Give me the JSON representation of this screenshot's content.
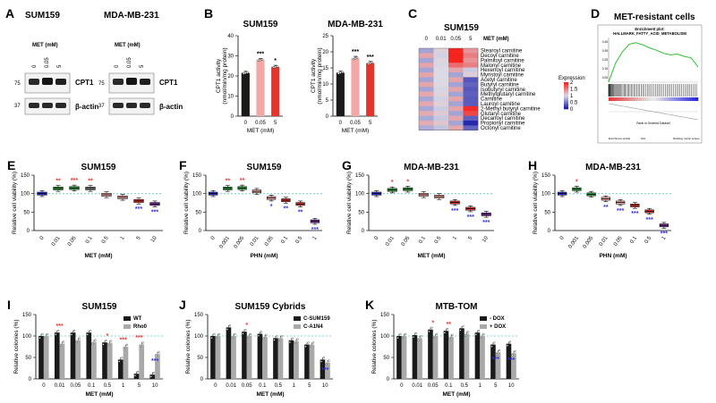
{
  "colors": {
    "black": "#1a1a1a",
    "red": "#e8332a",
    "pink": "#f4a8a5",
    "green": "#2f9e3f",
    "purple": "#7e2fa3",
    "blue": "#2a2fd6",
    "cyan": "#5fc8c8",
    "gray": "#a9a9a9",
    "lightgray": "#d6d6d6"
  },
  "panelA": {
    "letter": "A",
    "blots": [
      {
        "title": "SUM159",
        "treat": "MET (mM)",
        "lanes": [
          "0",
          "0.05",
          "5"
        ],
        "bands": [
          "CPT1",
          "β-actin"
        ],
        "mw": [
          "75",
          "37"
        ]
      },
      {
        "title": "MDA-MB-231",
        "treat": "MET (mM)",
        "lanes": [
          "0",
          "0.05",
          "5"
        ],
        "bands": [
          "CPT1",
          "β-actin"
        ],
        "mw": [
          "75",
          "37"
        ]
      }
    ]
  },
  "panelB": {
    "letter": "B",
    "ylabel": "CPT1 activity (nmol/min/mg protein)",
    "xlabel": "MET (mM)"
  },
  "panelC": {
    "letter": "C",
    "title": "SUM159",
    "treat": "MET (mM)",
    "cols": [
      "0",
      "0.01",
      "0.05",
      "5"
    ],
    "legend_title": "Expression",
    "legend_ticks": [
      "2",
      "1.5",
      "1",
      "0.5",
      "0"
    ],
    "rows": [
      "Stearoyl carnitine",
      "Decoyl carnitine",
      "Palmitoyl carnitine",
      "Malonyl carnitine",
      "Hexenoyl carnitine",
      "Myristoyl carnitine",
      "Acetyl carnitine",
      "Butyryl carnitine",
      "Isobutyryl carnitine",
      "Methylglutaryl carnitine",
      "Carnitine",
      "Lauroyl carnitine",
      "2-Methyl butyryl carnitine",
      "Glutaryl carnitine",
      "Decanoyl carnitine",
      "Propionyl carnitine",
      "Octonyl carnitine"
    ]
  },
  "panelD": {
    "letter": "D",
    "title": "MET-resistant cells",
    "plot_title": "Enrichment plot:",
    "plot_subtitle": "HALLMARK_FATTY_ACID_METABOLISM",
    "xlabel": "Rank in Ordered Dataset",
    "legend": [
      "Enrichment profile",
      "Hits",
      "Ranking metric scores"
    ]
  },
  "chart_data": [
    {
      "id": "B1",
      "type": "bar",
      "title": "SUM159",
      "categories": [
        "0",
        "0.05",
        "5"
      ],
      "values": [
        21.5,
        28,
        24.5
      ],
      "errors": [
        0.8,
        0.7,
        0.8
      ],
      "stars": [
        "",
        "***",
        "*"
      ],
      "ylim": [
        0,
        40
      ],
      "yticks": [
        0,
        10,
        20,
        30,
        40
      ],
      "ylabel": "CPT1 activity (nmol/min/mg protein)",
      "xlabel": "MET (mM)"
    },
    {
      "id": "B2",
      "type": "bar",
      "title": "MDA-MB-231",
      "categories": [
        "0",
        "0.05",
        "5"
      ],
      "values": [
        13.5,
        18,
        16.5
      ],
      "errors": [
        0.5,
        0.6,
        0.5
      ],
      "stars": [
        "",
        "***",
        "***"
      ],
      "ylim": [
        0,
        25
      ],
      "yticks": [
        0,
        5,
        10,
        15,
        20,
        25
      ],
      "ylabel": "CPT1 activity (nmol/min/mg protein)",
      "xlabel": "MET (mM)"
    },
    {
      "id": "C",
      "type": "heatmap",
      "rows": 17,
      "columns": 4,
      "scale": [
        0,
        2
      ]
    },
    {
      "id": "D",
      "type": "line",
      "title": "HALLMARK_FATTY_ACID_METABOLISM",
      "y": [
        0,
        0.25,
        0.4,
        0.5,
        0.52,
        0.49,
        0.45,
        0.42,
        0.38,
        0.36,
        0.37,
        0.34,
        0.32,
        0.2
      ],
      "yticks": [
        "0.45",
        "0.35",
        "0.25",
        "0.15",
        "0.05"
      ]
    },
    {
      "id": "E",
      "type": "box",
      "letter": "E",
      "title": "SUM159",
      "categories": [
        "0",
        "0.01",
        "0.05",
        "0.1",
        "0.5",
        "1",
        "5",
        "10"
      ],
      "medians": [
        100,
        114,
        115,
        114,
        97,
        90,
        80,
        72
      ],
      "box_colors": [
        "#2a2fd6",
        "#2f9e3f",
        "#2f9e3f",
        "#888888",
        "#f4a8a5",
        "#f4a8a5",
        "#e8332a",
        "#7e2fa3"
      ],
      "stars": [
        "",
        "**",
        "***",
        "**",
        "",
        "",
        "***",
        "***"
      ],
      "star_colors": [
        "",
        "red",
        "red",
        "red",
        "",
        "",
        "blue",
        "blue"
      ],
      "ylabel": "Relative cell viability (%)",
      "xlabel": "MET (mM)",
      "ylim": [
        0,
        150
      ],
      "yticks": [
        0,
        50,
        100,
        150
      ],
      "ref": 100
    },
    {
      "id": "F",
      "type": "box",
      "letter": "F",
      "title": "SUM159",
      "categories": [
        "0",
        "0.001",
        "0.005",
        "0.01",
        "0.05",
        "0.1",
        "0.5",
        "1"
      ],
      "medians": [
        100,
        114,
        115,
        106,
        88,
        82,
        72,
        25
      ],
      "box_colors": [
        "#2a2fd6",
        "#2f9e3f",
        "#2f9e3f",
        "#f4a8a5",
        "#f4a8a5",
        "#e8332a",
        "#e8332a",
        "#7e2fa3"
      ],
      "stars": [
        "",
        "**",
        "**",
        "",
        "*",
        "**",
        "**",
        "***"
      ],
      "star_colors": [
        "",
        "red",
        "red",
        "",
        "blue",
        "blue",
        "blue",
        "blue"
      ],
      "ylabel": "Relative cell viability (%)",
      "xlabel": "PHN (mM)",
      "ylim": [
        0,
        150
      ],
      "yticks": [
        0,
        50,
        100,
        150
      ],
      "ref": 100
    },
    {
      "id": "G",
      "type": "box",
      "letter": "G",
      "title": "MDA-MB-231",
      "categories": [
        "0",
        "0.01",
        "0.05",
        "0.1",
        "0.5",
        "1",
        "5",
        "10"
      ],
      "medians": [
        100,
        110,
        112,
        97,
        92,
        76,
        59,
        44
      ],
      "box_colors": [
        "#2a2fd6",
        "#2f9e3f",
        "#2f9e3f",
        "#f4a8a5",
        "#f4a8a5",
        "#e8332a",
        "#e8332a",
        "#7e2fa3"
      ],
      "stars": [
        "",
        "*",
        "*",
        "",
        "",
        "***",
        "***",
        "***"
      ],
      "star_colors": [
        "",
        "red",
        "red",
        "",
        "",
        "blue",
        "blue",
        "blue"
      ],
      "ylabel": "Relative cell viability (%)",
      "xlabel": "MET (mM)",
      "ylim": [
        0,
        150
      ],
      "yticks": [
        0,
        50,
        100,
        150
      ],
      "ref": 100
    },
    {
      "id": "H",
      "type": "box",
      "letter": "H",
      "title": "MDA-MB-231",
      "categories": [
        "0",
        "0.001",
        "0.005",
        "0.01",
        "0.05",
        "0.1",
        "0.5",
        "1"
      ],
      "medians": [
        100,
        112,
        98,
        86,
        76,
        68,
        52,
        14
      ],
      "box_colors": [
        "#2a2fd6",
        "#2f9e3f",
        "#2f9e3f",
        "#f4a8a5",
        "#f4a8a5",
        "#e8332a",
        "#e8332a",
        "#7e2fa3"
      ],
      "stars": [
        "",
        "*",
        "",
        "**",
        "***",
        "***",
        "***",
        "***"
      ],
      "star_colors": [
        "",
        "red",
        "",
        "blue",
        "blue",
        "blue",
        "blue",
        "blue"
      ],
      "ylabel": "Relative cell viability (%)",
      "xlabel": "PHN (mM)",
      "ylim": [
        0,
        150
      ],
      "yticks": [
        0,
        50,
        100,
        150
      ],
      "ref": 100
    },
    {
      "id": "I",
      "type": "bar",
      "letter": "I",
      "title": "SUM159",
      "categories": [
        "0",
        "0.01",
        "0.05",
        "0.1",
        "0.5",
        "1",
        "5",
        "10"
      ],
      "series": [
        {
          "name": "WT",
          "values": [
            100,
            108,
            108,
            108,
            85,
            45,
            12,
            10
          ],
          "color": "#1a1a1a"
        },
        {
          "name": "Rho0",
          "values": [
            100,
            82,
            90,
            86,
            84,
            75,
            80,
            58
          ],
          "color": "#a9a9a9"
        }
      ],
      "stars": [
        "",
        "***",
        "",
        "",
        "*",
        "***",
        "***",
        "***"
      ],
      "ylabel": "Relative colonies (%)",
      "xlabel": "MET (mM)",
      "ylim": [
        0,
        150
      ],
      "yticks": [
        0,
        50,
        100,
        150
      ],
      "ref": 100
    },
    {
      "id": "J",
      "type": "bar",
      "letter": "J",
      "title": "SUM159 Cybrids",
      "categories": [
        "0",
        "0.01",
        "0.05",
        "0.1",
        "0.5",
        "1",
        "5",
        "10"
      ],
      "series": [
        {
          "name": "C-SUM159",
          "values": [
            100,
            120,
            110,
            105,
            95,
            90,
            80,
            45
          ],
          "color": "#1a1a1a"
        },
        {
          "name": "C-A1N4",
          "values": [
            100,
            100,
            100,
            98,
            95,
            88,
            80,
            38
          ],
          "color": "#a9a9a9"
        }
      ],
      "stars": [
        "",
        "",
        "*",
        "",
        "",
        "",
        "",
        "***"
      ],
      "ylabel": "Relative colonies (%)",
      "xlabel": "MET (mM)",
      "ylim": [
        0,
        150
      ],
      "yticks": [
        0,
        50,
        100,
        150
      ],
      "ref": 100
    },
    {
      "id": "K",
      "type": "bar",
      "letter": "K",
      "title": "MTB-TOM",
      "categories": [
        "0",
        "0.01",
        "0.05",
        "0.1",
        "0.5",
        "1",
        "5",
        "10"
      ],
      "series": [
        {
          "name": "- DOX",
          "values": [
            100,
            102,
            115,
            112,
            118,
            108,
            80,
            82
          ],
          "color": "#1a1a1a"
        },
        {
          "name": "+ DOX",
          "values": [
            100,
            95,
            100,
            98,
            105,
            100,
            62,
            60
          ],
          "color": "#a9a9a9"
        }
      ],
      "stars": [
        "",
        "",
        "*",
        "**",
        "",
        "",
        "***",
        "***"
      ],
      "ylabel": "Relative colonies (%)",
      "xlabel": "MET (mM)",
      "ylim": [
        0,
        150
      ],
      "yticks": [
        0,
        50,
        100,
        150
      ],
      "ref": 100
    }
  ]
}
